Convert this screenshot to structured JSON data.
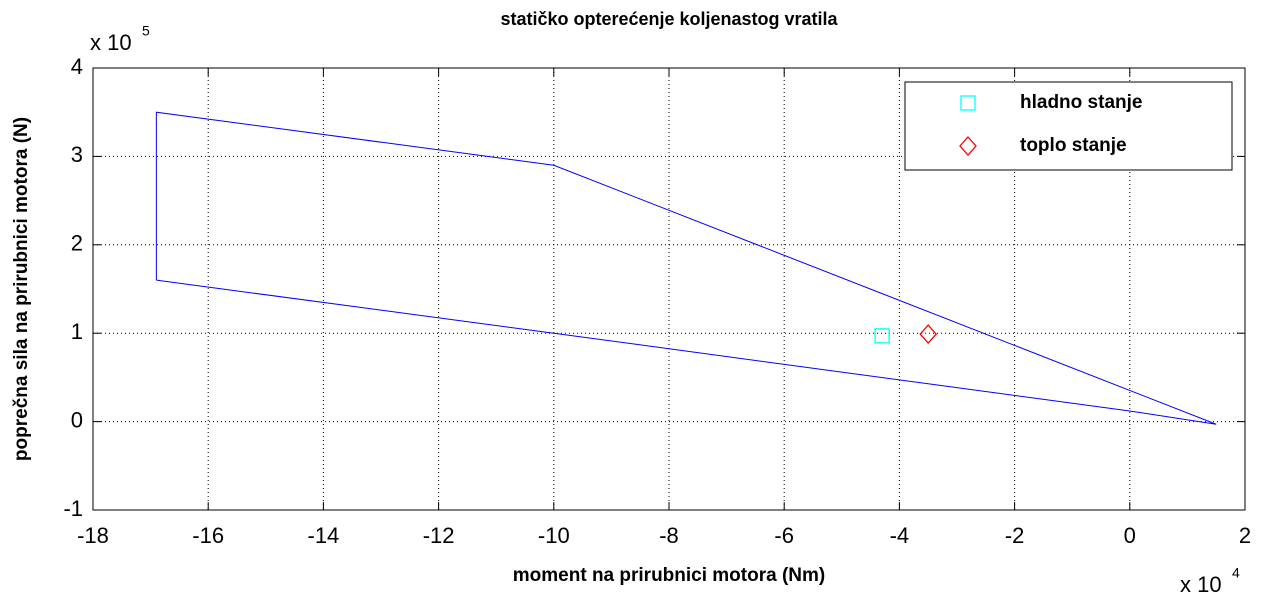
{
  "chart_data": {
    "type": "scatter",
    "title": "statičko opterećenje koljenastog vratila",
    "x_label": "moment na prirubnici motora (Nm)",
    "y_label": "poprečna sila na prirubnici motora (N)",
    "x_multiplier": {
      "base": "x 10",
      "exponent": "4"
    },
    "y_multiplier": {
      "base": "x 10",
      "exponent": "5"
    },
    "xlim": [
      -18,
      2
    ],
    "ylim": [
      -1,
      4
    ],
    "xticks": [
      -18,
      -16,
      -14,
      -12,
      -10,
      -8,
      -6,
      -4,
      -2,
      0,
      2
    ],
    "yticks": [
      -1,
      0,
      1,
      2,
      3,
      4
    ],
    "grid": true,
    "legend": "upper right",
    "line": {
      "color": "#0000ff",
      "x": [
        -16.9,
        -10,
        0,
        1.5,
        -10,
        -16.9,
        -16.9
      ],
      "y": [
        1.6,
        1.0,
        0.12,
        -0.03,
        2.9,
        3.5,
        1.6
      ]
    },
    "series": [
      {
        "name": "hladno stanje",
        "color": "#00ffff",
        "marker": "square",
        "x": [
          -4.3
        ],
        "values": [
          0.97
        ]
      },
      {
        "name": "toplo stanje",
        "color": "#ff0000",
        "marker": "diamond",
        "x": [
          -3.5
        ],
        "values": [
          0.99
        ]
      }
    ]
  }
}
